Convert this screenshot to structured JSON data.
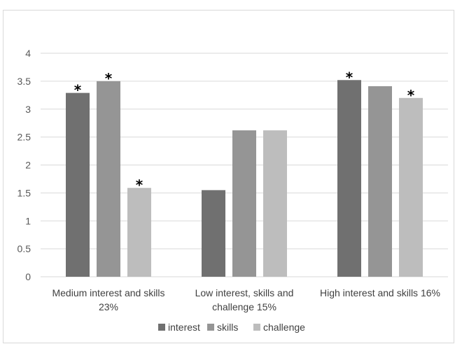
{
  "chart_data": {
    "type": "bar",
    "title": "",
    "xlabel": "",
    "ylabel": "",
    "ylim": [
      0,
      4
    ],
    "yticks": [
      "0",
      "0.5",
      "1",
      "1.5",
      "2",
      "2.5",
      "3",
      "3.5",
      "4"
    ],
    "grid": true,
    "legend_position": "bottom",
    "categories": [
      [
        "Medium interest and skills",
        "23%"
      ],
      [
        "Low interest, skills and",
        "challenge 15%"
      ],
      [
        "High interest and skills 16%"
      ]
    ],
    "series": [
      {
        "name": "interest",
        "color": "#707070",
        "values": [
          3.29,
          1.55,
          3.52
        ],
        "significant": [
          true,
          false,
          true
        ]
      },
      {
        "name": "skills",
        "color": "#959595",
        "values": [
          3.5,
          2.62,
          3.41
        ],
        "significant": [
          true,
          false,
          false
        ]
      },
      {
        "name": "challenge",
        "color": "#bdbdbd",
        "values": [
          1.59,
          2.62,
          3.2
        ],
        "significant": [
          true,
          false,
          true
        ]
      }
    ],
    "significance_marker": "*"
  }
}
